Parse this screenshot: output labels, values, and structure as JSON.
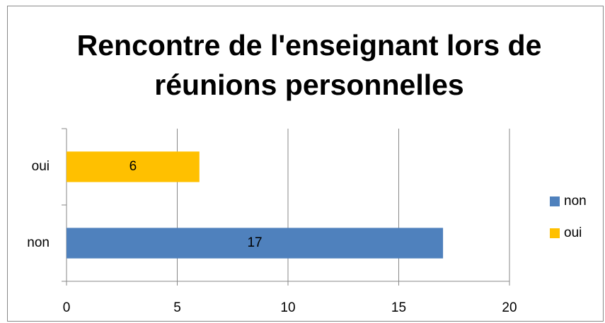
{
  "chart_data": {
    "type": "bar",
    "orientation": "horizontal",
    "title": "Rencontre de l'enseignant lors de réunions personnelles",
    "categories": [
      "non",
      "oui"
    ],
    "series": [
      {
        "name": "non",
        "color": "#4f81bd",
        "values": [
          17,
          null
        ]
      },
      {
        "name": "oui",
        "color": "#ffc000",
        "values": [
          null,
          6
        ]
      }
    ],
    "xlim": [
      0,
      20
    ],
    "xticks": [
      0,
      5,
      10,
      15,
      20
    ],
    "grid": true,
    "legend": "right"
  }
}
